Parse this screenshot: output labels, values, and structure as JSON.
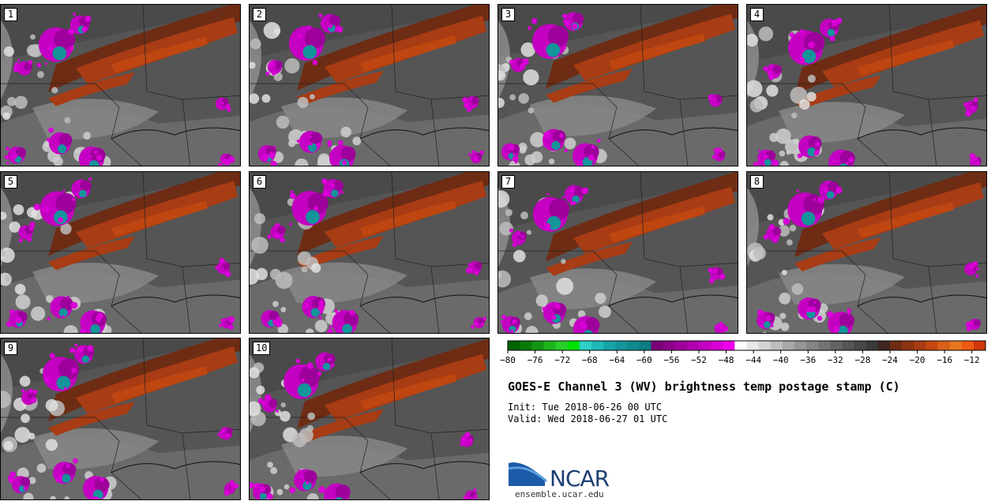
{
  "chart_data": {
    "type": "heatmap",
    "title": "GOES-E Channel 3 (WV) brightness temp postage stamp (C)",
    "init": "Init: Tue 2018-06-26 00 UTC",
    "valid": "Valid: Wed 2018-06-27 01 UTC",
    "colorbar": {
      "ticks": [
        -80,
        -76,
        -72,
        -68,
        -64,
        -60,
        -56,
        -52,
        -48,
        -44,
        -40,
        -36,
        -32,
        -28,
        -24,
        -20,
        -16,
        -12
      ],
      "range": [
        -80,
        -10
      ],
      "colors": [
        "#006400",
        "#0a7a0a",
        "#149614",
        "#1eb41e",
        "#28cd28",
        "#00e000",
        "#2fd0c8",
        "#1fbab8",
        "#16a5a8",
        "#13959a",
        "#0f8a8f",
        "#0c7d82",
        "#7a0078",
        "#8c008a",
        "#9e009c",
        "#b000ae",
        "#c400c2",
        "#d800d6",
        "#ef00ec",
        "#ffffff",
        "#e8e8e8",
        "#d4d4d4",
        "#bebebe",
        "#a8a8a8",
        "#969696",
        "#848484",
        "#747474",
        "#646464",
        "#555555",
        "#474747",
        "#3a3a3a",
        "#3f2620",
        "#6e2c14",
        "#8c3410",
        "#a83c14",
        "#c4480f",
        "#d8601a",
        "#e8761e",
        "#ee5a14",
        "#d0380a"
      ]
    },
    "members": [
      "1",
      "2",
      "3",
      "4",
      "5",
      "6",
      "7",
      "8",
      "9",
      "10"
    ]
  },
  "branding": {
    "logo_text": "NCAR",
    "url": "ensemble.ucar.edu"
  }
}
